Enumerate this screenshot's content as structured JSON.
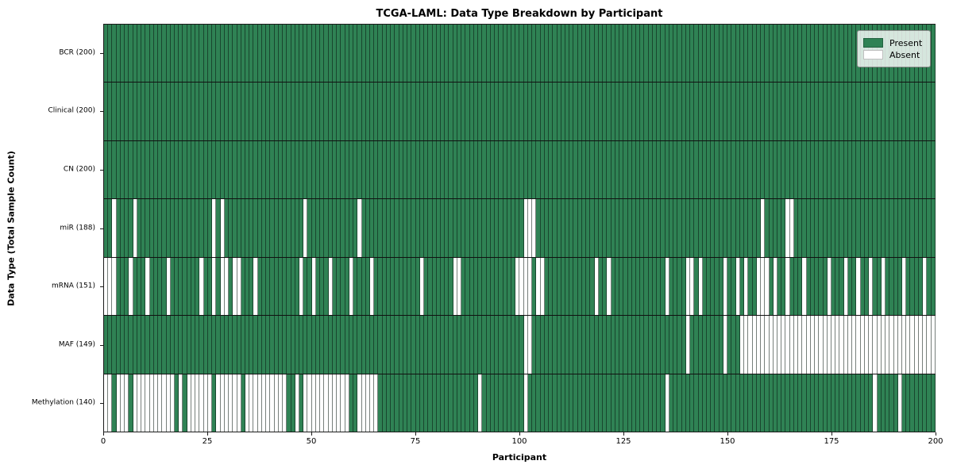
{
  "chart_data": {
    "type": "heatmap",
    "title": "TCGA-LAML: Data Type Breakdown by Participant",
    "xlabel": "Participant",
    "ylabel": "Data Type (Total Sample Count)",
    "x_ticks": [
      0,
      25,
      50,
      75,
      100,
      125,
      150,
      175,
      200
    ],
    "x_range": [
      0,
      200
    ],
    "n_participants": 200,
    "grid": false,
    "legend_position": "upper-right",
    "colors": {
      "present": "#2f8254",
      "absent": "#ffffff",
      "cell_edge": "#3d5247",
      "row_divider": "#111111",
      "spine": "#1a1a1a"
    },
    "legend": [
      {
        "label": "Present",
        "key": "present"
      },
      {
        "label": "Absent",
        "key": "absent"
      }
    ],
    "rows": [
      {
        "label": "BCR (200)",
        "present_count": 200,
        "absent": []
      },
      {
        "label": "Clinical (200)",
        "present_count": 200,
        "absent": []
      },
      {
        "label": "CN (200)",
        "present_count": 200,
        "absent": []
      },
      {
        "label": "miR (188)",
        "present_count": 188,
        "absent": [
          2,
          7,
          26,
          28,
          48,
          61,
          101,
          102,
          103,
          158,
          164,
          165
        ]
      },
      {
        "label": "mRNA (151)",
        "present_count": 151,
        "absent": [
          0,
          1,
          2,
          6,
          10,
          15,
          23,
          26,
          28,
          29,
          31,
          32,
          36,
          47,
          50,
          54,
          59,
          64,
          76,
          84,
          85,
          99,
          100,
          101,
          102,
          104,
          105,
          118,
          121,
          135,
          140,
          141,
          143,
          149,
          152,
          154,
          157,
          158,
          159,
          161,
          164,
          168,
          174,
          178,
          181,
          184,
          187,
          192,
          197
        ]
      },
      {
        "label": "MAF (149)",
        "present_count": 149,
        "absent": [
          101,
          102,
          140,
          149,
          153,
          154,
          155,
          156,
          157,
          158,
          159,
          160,
          161,
          162,
          163,
          164,
          165,
          166,
          167,
          168,
          169,
          170,
          171,
          172,
          173,
          174,
          175,
          176,
          177,
          178,
          179,
          180,
          181,
          182,
          183,
          184,
          185,
          186,
          187,
          188,
          189,
          190,
          191,
          192,
          193,
          194,
          195,
          196,
          197,
          198,
          199
        ]
      },
      {
        "label": "Methylation (140)",
        "present_count": 140,
        "absent": [
          0,
          1,
          3,
          4,
          5,
          7,
          8,
          9,
          10,
          11,
          12,
          13,
          14,
          15,
          16,
          18,
          20,
          21,
          22,
          23,
          24,
          25,
          27,
          28,
          29,
          30,
          31,
          32,
          34,
          35,
          36,
          37,
          38,
          39,
          40,
          41,
          42,
          43,
          46,
          48,
          49,
          50,
          51,
          52,
          53,
          54,
          55,
          56,
          57,
          58,
          61,
          62,
          63,
          64,
          65,
          90,
          101,
          135,
          185,
          191
        ]
      }
    ]
  }
}
